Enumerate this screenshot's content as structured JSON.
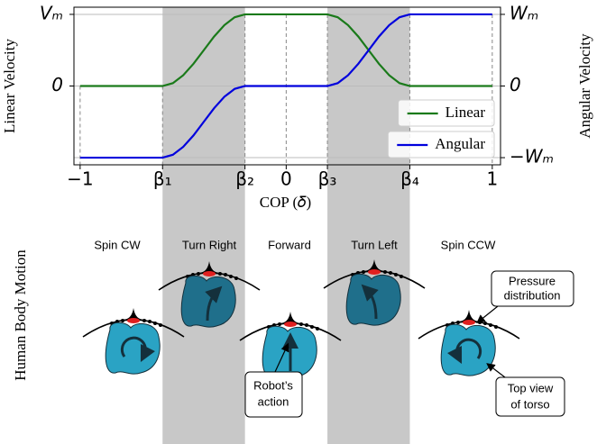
{
  "chart_data": {
    "type": "line",
    "xlabel": "COP (𝛿)",
    "ylabel": "Linear Velocity",
    "y2label": "Angular Velocity",
    "x": [
      -1,
      -0.6,
      -0.55,
      -0.5,
      -0.45,
      -0.4,
      -0.35,
      -0.3,
      -0.25,
      -0.2,
      0.2,
      0.25,
      0.3,
      0.35,
      0.4,
      0.45,
      0.5,
      0.55,
      0.6,
      1
    ],
    "series": [
      {
        "name": "Linear",
        "color": "#1a7a1a",
        "values": [
          0,
          0,
          0.04,
          0.15,
          0.31,
          0.5,
          0.69,
          0.85,
          0.96,
          1,
          1,
          0.96,
          0.85,
          0.69,
          0.5,
          0.31,
          0.15,
          0.04,
          0,
          0
        ]
      },
      {
        "name": "Angular",
        "color": "#0000dd",
        "axis": "y2",
        "values": [
          -1,
          -1,
          -0.96,
          -0.85,
          -0.69,
          -0.5,
          -0.31,
          -0.15,
          -0.04,
          0,
          0,
          0.04,
          0.15,
          0.31,
          0.5,
          0.69,
          0.85,
          0.96,
          1,
          1
        ]
      }
    ],
    "xlim": [
      -1.03,
      1.04
    ],
    "ylim": [
      -1.1,
      1.1
    ],
    "y2lim": [
      -1.1,
      1.1
    ],
    "xticks": [
      {
        "value": -1,
        "label": "−1"
      },
      {
        "value": -0.6,
        "label": "β₁"
      },
      {
        "value": -0.2,
        "label": "β₂"
      },
      0,
      {
        "value": 0.2,
        "label": "β₃"
      },
      {
        "value": 0.6,
        "label": "β₄"
      },
      1
    ],
    "yticks": [
      {
        "value": 1,
        "label": "Vₘ"
      },
      0
    ],
    "y2ticks": [
      {
        "value": 1,
        "label": "Wₘ"
      },
      0,
      {
        "value": -1,
        "label": "−Wₘ"
      }
    ],
    "grid": true,
    "legend": "lower right",
    "shaded": [
      [
        -0.6,
        -0.2
      ],
      [
        0.2,
        0.6
      ]
    ],
    "shade_color": "#c8c8c8"
  },
  "diagram": {
    "ylabel": "Human Body Motion",
    "motions": [
      "Spin CW",
      "Turn Right",
      "Forward",
      "Turn Left",
      "Spin CCW"
    ],
    "callouts": {
      "pressure": [
        "Pressure",
        "distribution"
      ],
      "action": [
        "Robot’s",
        "action"
      ],
      "torso": [
        "Top view",
        "of torso"
      ]
    }
  }
}
